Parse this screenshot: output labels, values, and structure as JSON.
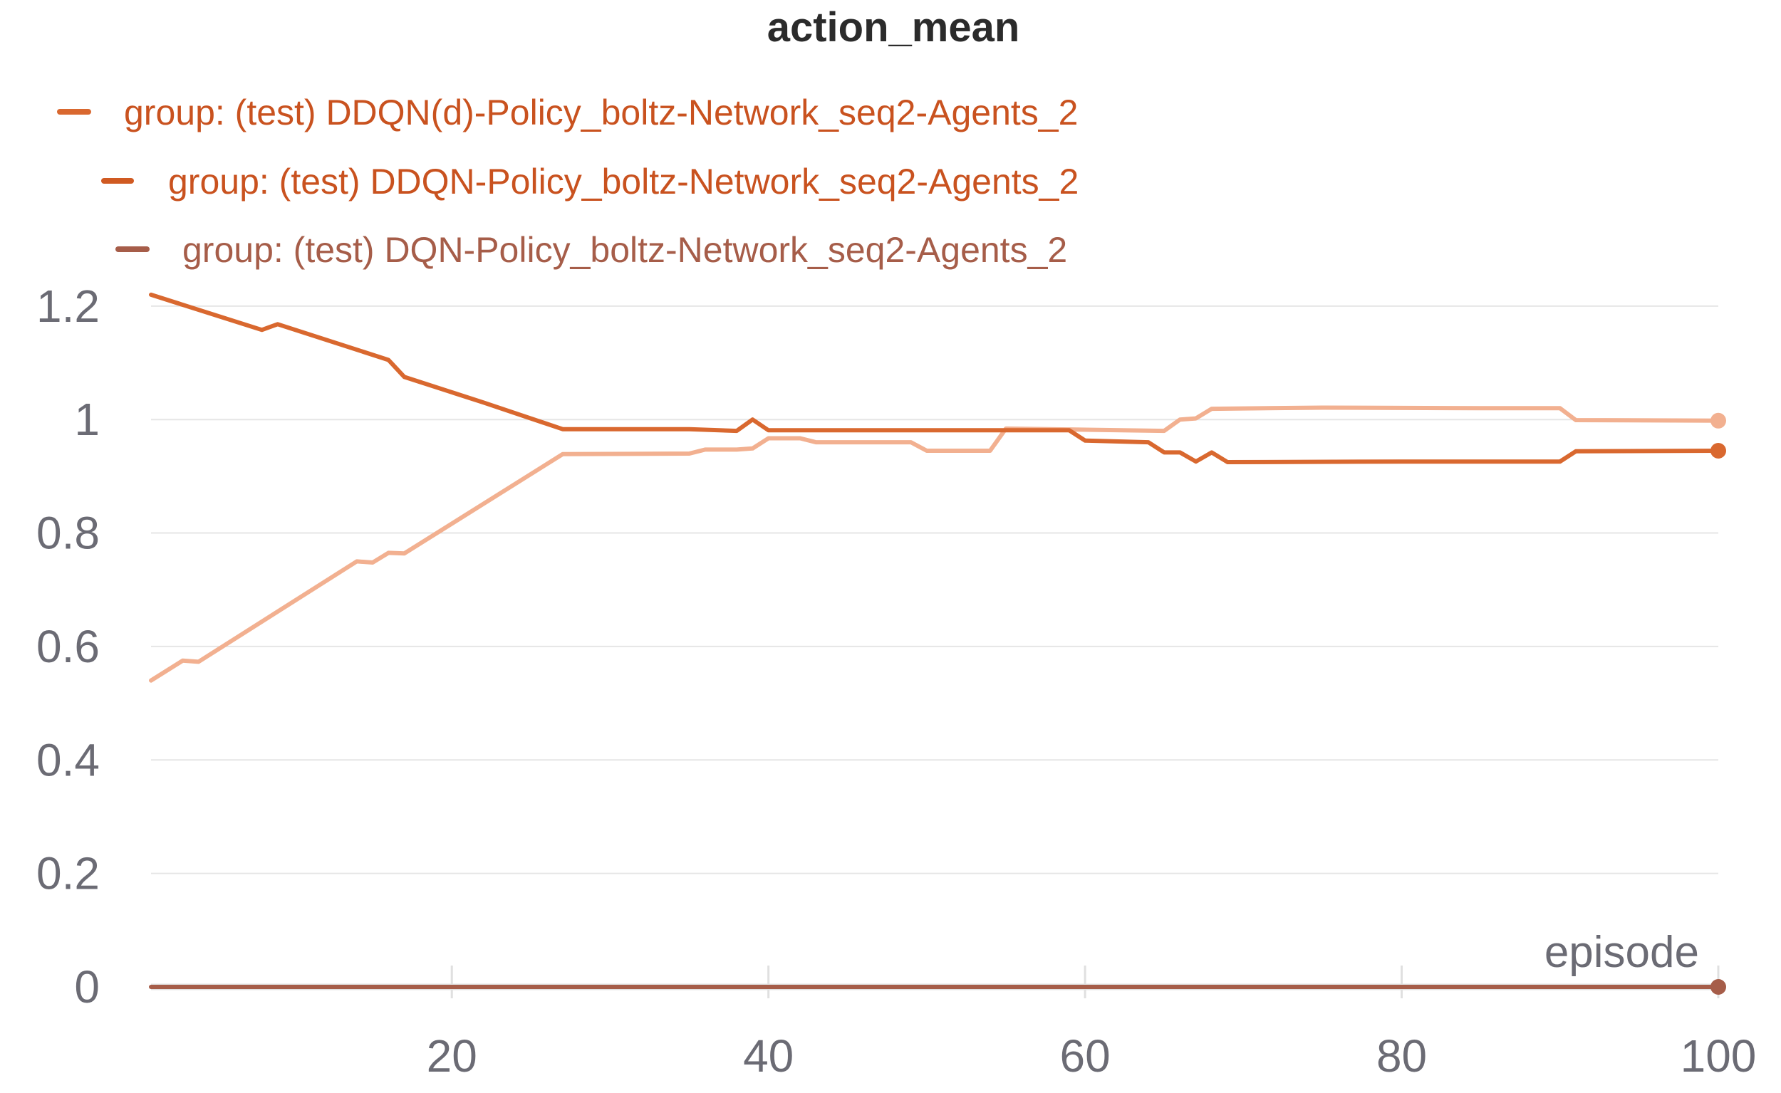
{
  "chart_data": {
    "type": "line",
    "title": "action_mean",
    "xlabel": "episode",
    "ylabel": "",
    "xlim": [
      1,
      100
    ],
    "ylim": [
      0,
      1.25
    ],
    "x_ticks": [
      "20",
      "40",
      "60",
      "80",
      "100"
    ],
    "x_tick_values": [
      20,
      40,
      60,
      80,
      100
    ],
    "y_ticks": [
      "0",
      "0.2",
      "0.4",
      "0.6",
      "0.8",
      "1",
      "1.2"
    ],
    "y_tick_values": [
      0,
      0.2,
      0.4,
      0.6,
      0.8,
      1.0,
      1.2
    ],
    "grid": true,
    "legend_position": "top-left",
    "series": [
      {
        "name": "group: (test) DDQN(d)-Policy_boltz-Network_seq2-Agents_2",
        "color": "#d9682f",
        "points": [
          [
            1,
            1.22
          ],
          [
            8,
            1.158
          ],
          [
            9,
            1.168
          ],
          [
            16,
            1.105
          ],
          [
            17,
            1.075
          ],
          [
            22,
            1.03
          ],
          [
            27,
            0.983
          ],
          [
            35,
            0.983
          ],
          [
            38,
            0.98
          ],
          [
            39,
            1.0
          ],
          [
            40,
            0.981
          ],
          [
            50,
            0.981
          ],
          [
            55,
            0.981
          ],
          [
            59,
            0.981
          ],
          [
            60,
            0.963
          ],
          [
            64,
            0.96
          ],
          [
            65,
            0.942
          ],
          [
            66,
            0.942
          ],
          [
            67,
            0.926
          ],
          [
            68,
            0.942
          ],
          [
            69,
            0.925
          ],
          [
            80,
            0.926
          ],
          [
            90,
            0.926
          ],
          [
            91,
            0.944
          ],
          [
            100,
            0.945
          ]
        ]
      },
      {
        "name": "group: (test) DDQN-Policy_boltz-Network_seq2-Agents_2",
        "color": "#f2b090",
        "points": [
          [
            1,
            0.54
          ],
          [
            3,
            0.575
          ],
          [
            4,
            0.573
          ],
          [
            14,
            0.75
          ],
          [
            15,
            0.748
          ],
          [
            16,
            0.765
          ],
          [
            17,
            0.764
          ],
          [
            27,
            0.939
          ],
          [
            35,
            0.94
          ],
          [
            36,
            0.947
          ],
          [
            38,
            0.947
          ],
          [
            39,
            0.949
          ],
          [
            40,
            0.967
          ],
          [
            42,
            0.967
          ],
          [
            43,
            0.96
          ],
          [
            49,
            0.96
          ],
          [
            50,
            0.945
          ],
          [
            54,
            0.945
          ],
          [
            55,
            0.984
          ],
          [
            65,
            0.98
          ],
          [
            66,
            1.0
          ],
          [
            67,
            1.002
          ],
          [
            68,
            1.019
          ],
          [
            75,
            1.021
          ],
          [
            85,
            1.02
          ],
          [
            90,
            1.02
          ],
          [
            91,
            0.999
          ],
          [
            100,
            0.998
          ]
        ]
      },
      {
        "name": "group: (test) DQN-Policy_boltz-Network_seq2-Agents_2",
        "color": "#a65d49",
        "points": [
          [
            1,
            0
          ],
          [
            100,
            0
          ]
        ]
      }
    ]
  }
}
